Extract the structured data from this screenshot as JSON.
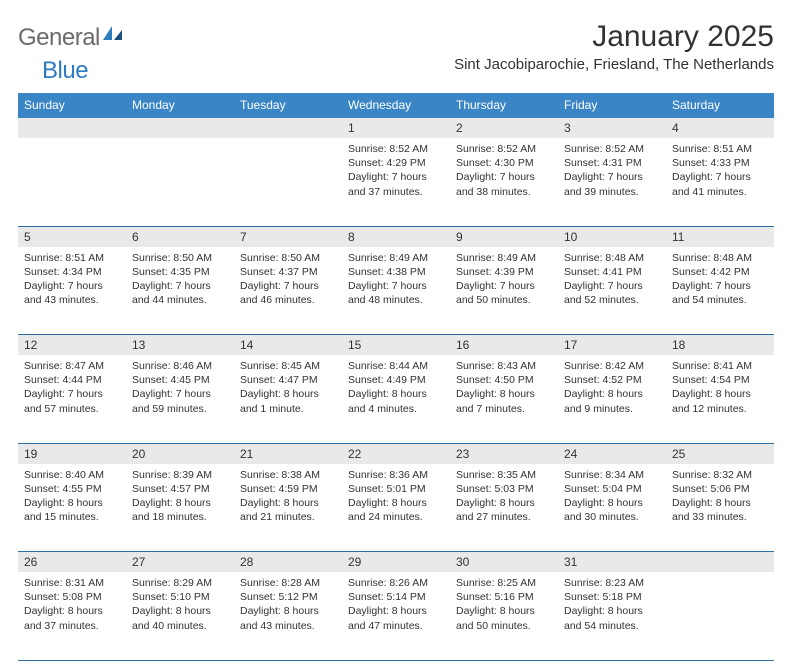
{
  "logo": {
    "text1": "General",
    "text2": "Blue"
  },
  "title": "January 2025",
  "location": "Sint Jacobiparochie, Friesland, The Netherlands",
  "header_bg": "#3a85c6",
  "header_fg": "#ffffff",
  "daynum_bg": "#e9e9e9",
  "border_color": "#2f6fa8",
  "days": [
    "Sunday",
    "Monday",
    "Tuesday",
    "Wednesday",
    "Thursday",
    "Friday",
    "Saturday"
  ],
  "weeks": [
    [
      null,
      null,
      null,
      {
        "n": "1",
        "sr": "8:52 AM",
        "ss": "4:29 PM",
        "dl": "7 hours and 37 minutes."
      },
      {
        "n": "2",
        "sr": "8:52 AM",
        "ss": "4:30 PM",
        "dl": "7 hours and 38 minutes."
      },
      {
        "n": "3",
        "sr": "8:52 AM",
        "ss": "4:31 PM",
        "dl": "7 hours and 39 minutes."
      },
      {
        "n": "4",
        "sr": "8:51 AM",
        "ss": "4:33 PM",
        "dl": "7 hours and 41 minutes."
      }
    ],
    [
      {
        "n": "5",
        "sr": "8:51 AM",
        "ss": "4:34 PM",
        "dl": "7 hours and 43 minutes."
      },
      {
        "n": "6",
        "sr": "8:50 AM",
        "ss": "4:35 PM",
        "dl": "7 hours and 44 minutes."
      },
      {
        "n": "7",
        "sr": "8:50 AM",
        "ss": "4:37 PM",
        "dl": "7 hours and 46 minutes."
      },
      {
        "n": "8",
        "sr": "8:49 AM",
        "ss": "4:38 PM",
        "dl": "7 hours and 48 minutes."
      },
      {
        "n": "9",
        "sr": "8:49 AM",
        "ss": "4:39 PM",
        "dl": "7 hours and 50 minutes."
      },
      {
        "n": "10",
        "sr": "8:48 AM",
        "ss": "4:41 PM",
        "dl": "7 hours and 52 minutes."
      },
      {
        "n": "11",
        "sr": "8:48 AM",
        "ss": "4:42 PM",
        "dl": "7 hours and 54 minutes."
      }
    ],
    [
      {
        "n": "12",
        "sr": "8:47 AM",
        "ss": "4:44 PM",
        "dl": "7 hours and 57 minutes."
      },
      {
        "n": "13",
        "sr": "8:46 AM",
        "ss": "4:45 PM",
        "dl": "7 hours and 59 minutes."
      },
      {
        "n": "14",
        "sr": "8:45 AM",
        "ss": "4:47 PM",
        "dl": "8 hours and 1 minute."
      },
      {
        "n": "15",
        "sr": "8:44 AM",
        "ss": "4:49 PM",
        "dl": "8 hours and 4 minutes."
      },
      {
        "n": "16",
        "sr": "8:43 AM",
        "ss": "4:50 PM",
        "dl": "8 hours and 7 minutes."
      },
      {
        "n": "17",
        "sr": "8:42 AM",
        "ss": "4:52 PM",
        "dl": "8 hours and 9 minutes."
      },
      {
        "n": "18",
        "sr": "8:41 AM",
        "ss": "4:54 PM",
        "dl": "8 hours and 12 minutes."
      }
    ],
    [
      {
        "n": "19",
        "sr": "8:40 AM",
        "ss": "4:55 PM",
        "dl": "8 hours and 15 minutes."
      },
      {
        "n": "20",
        "sr": "8:39 AM",
        "ss": "4:57 PM",
        "dl": "8 hours and 18 minutes."
      },
      {
        "n": "21",
        "sr": "8:38 AM",
        "ss": "4:59 PM",
        "dl": "8 hours and 21 minutes."
      },
      {
        "n": "22",
        "sr": "8:36 AM",
        "ss": "5:01 PM",
        "dl": "8 hours and 24 minutes."
      },
      {
        "n": "23",
        "sr": "8:35 AM",
        "ss": "5:03 PM",
        "dl": "8 hours and 27 minutes."
      },
      {
        "n": "24",
        "sr": "8:34 AM",
        "ss": "5:04 PM",
        "dl": "8 hours and 30 minutes."
      },
      {
        "n": "25",
        "sr": "8:32 AM",
        "ss": "5:06 PM",
        "dl": "8 hours and 33 minutes."
      }
    ],
    [
      {
        "n": "26",
        "sr": "8:31 AM",
        "ss": "5:08 PM",
        "dl": "8 hours and 37 minutes."
      },
      {
        "n": "27",
        "sr": "8:29 AM",
        "ss": "5:10 PM",
        "dl": "8 hours and 40 minutes."
      },
      {
        "n": "28",
        "sr": "8:28 AM",
        "ss": "5:12 PM",
        "dl": "8 hours and 43 minutes."
      },
      {
        "n": "29",
        "sr": "8:26 AM",
        "ss": "5:14 PM",
        "dl": "8 hours and 47 minutes."
      },
      {
        "n": "30",
        "sr": "8:25 AM",
        "ss": "5:16 PM",
        "dl": "8 hours and 50 minutes."
      },
      {
        "n": "31",
        "sr": "8:23 AM",
        "ss": "5:18 PM",
        "dl": "8 hours and 54 minutes."
      },
      null
    ]
  ],
  "labels": {
    "sunrise": "Sunrise:",
    "sunset": "Sunset:",
    "daylight": "Daylight:"
  }
}
